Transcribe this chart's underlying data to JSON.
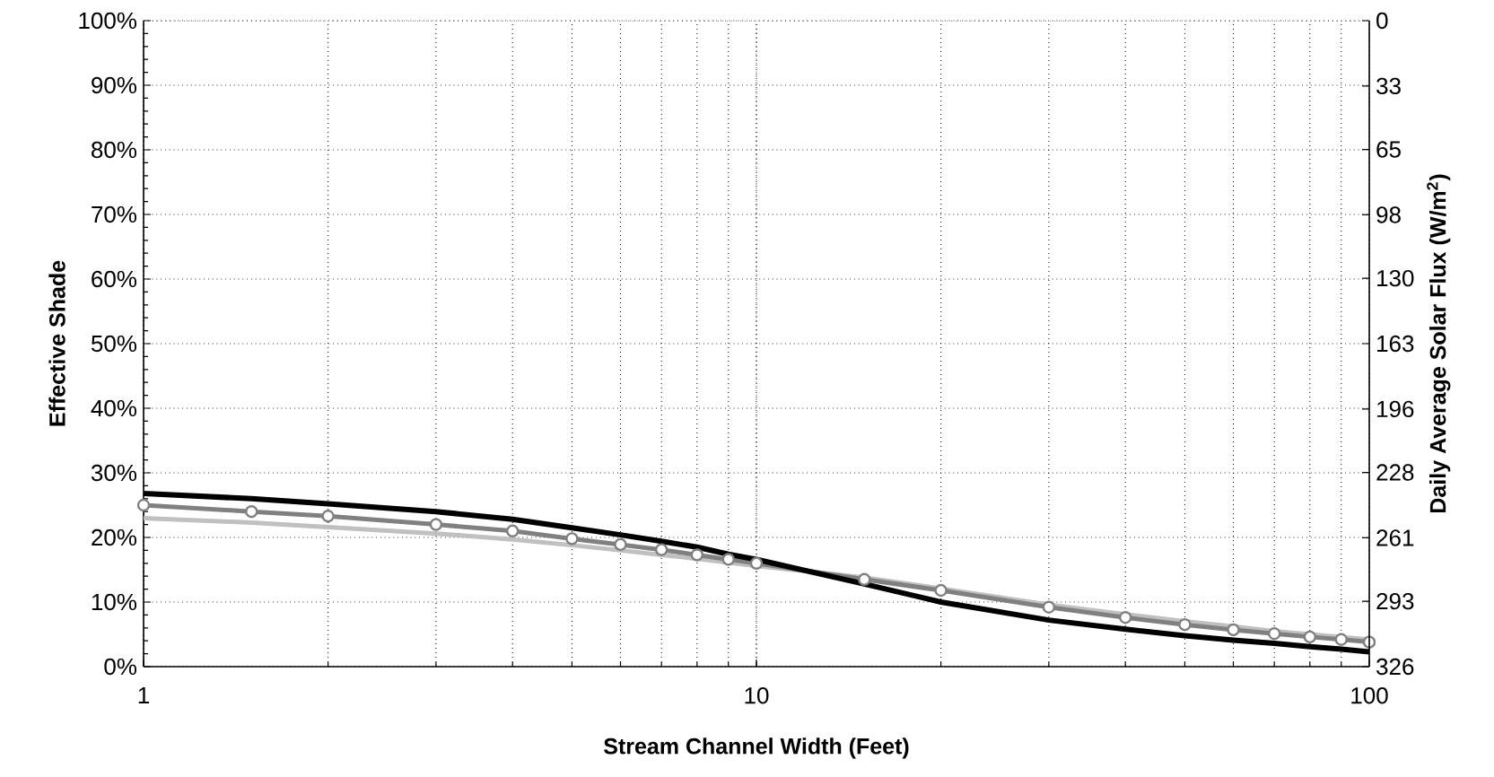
{
  "chart_data": {
    "type": "line",
    "xlabel": "Stream Channel Width (Feet)",
    "ylabel": "Effective Shade",
    "y2label": "Daily Average Solar Flux (W/m$^{2}$)",
    "x": [
      1,
      1.5,
      2,
      3,
      4,
      5,
      6,
      7,
      8,
      9,
      10,
      15,
      20,
      30,
      40,
      50,
      60,
      70,
      80,
      90,
      100
    ],
    "series": [
      {
        "color": "#c0c0c0",
        "marker": "none",
        "values": [
          23,
          22.3,
          21.6,
          20.6,
          19.7,
          18.8,
          18,
          17.3,
          16.7,
          16.1,
          15.6,
          13.8,
          12.1,
          9.6,
          8.1,
          7.0,
          6.2,
          5.5,
          5.0,
          4.6,
          4.2
        ]
      },
      {
        "color": "#808080",
        "marker": "circle",
        "values": [
          25,
          24,
          23.3,
          22,
          21,
          19.8,
          18.9,
          18.1,
          17.3,
          16.6,
          16,
          13.5,
          11.8,
          9.2,
          7.6,
          6.5,
          5.7,
          5.1,
          4.6,
          4.2,
          3.8
        ]
      },
      {
        "color": "#000000",
        "marker": "none",
        "values": [
          26.8,
          26,
          25.2,
          24,
          22.8,
          21.5,
          20.4,
          19.4,
          18.5,
          17.4,
          16.6,
          12.8,
          10,
          7.2,
          5.8,
          4.8,
          4.1,
          3.6,
          3.1,
          2.7,
          2.3
        ]
      }
    ],
    "log": "x",
    "xlim": [
      1,
      100
    ],
    "xticks": [
      1,
      10,
      100
    ],
    "ylim": [
      0,
      100
    ],
    "yticks": [
      {
        "value": 0,
        "label": "0%"
      },
      {
        "value": 10,
        "label": "10%"
      },
      {
        "value": 20,
        "label": "20%"
      },
      {
        "value": 30,
        "label": "30%"
      },
      {
        "value": 40,
        "label": "40%"
      },
      {
        "value": 50,
        "label": "50%"
      },
      {
        "value": 60,
        "label": "60%"
      },
      {
        "value": 70,
        "label": "70%"
      },
      {
        "value": 80,
        "label": "80%"
      },
      {
        "value": 90,
        "label": "90%"
      },
      {
        "value": 100,
        "label": "100%"
      }
    ],
    "y2lim": [
      326,
      0
    ],
    "y2ticks": [
      0,
      33,
      65,
      98,
      130,
      163,
      196,
      228,
      261,
      293,
      326
    ],
    "grid": true,
    "legend": false
  }
}
